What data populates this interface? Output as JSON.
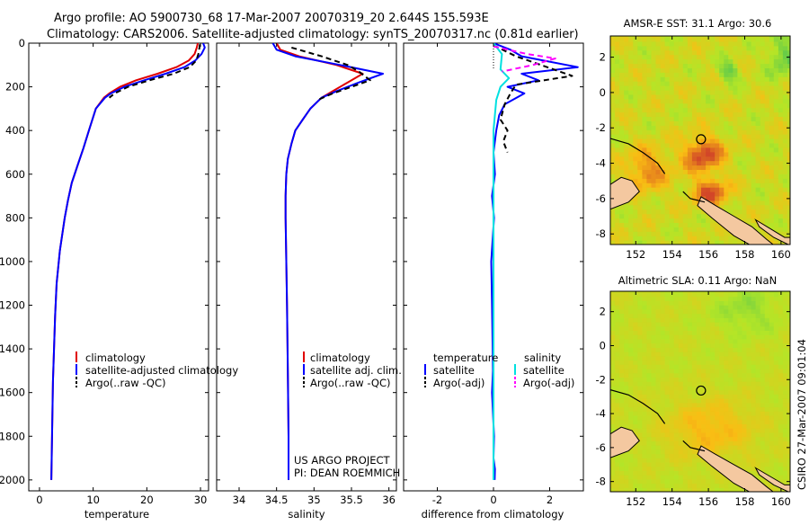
{
  "header": {
    "line1": "Argo profile: AO 5900730_68 17-Mar-2007 20070319_20 2.644S 155.593E",
    "line2": "Climatology: CARS2006. Satellite-adjusted climatology: synTS_20070317.nc (0.81d earlier)"
  },
  "side_label": "CSIRO 27-Mar-2007 09:01:04",
  "colors": {
    "climatology": "#e00000",
    "satellite": "#0000ff",
    "argo": "#000000",
    "satellite_salinity": "#00e0e0",
    "argo_salinity": "#ff00ff",
    "land": "#f4c8a0"
  },
  "chart_data": [
    {
      "type": "line",
      "id": "temperature",
      "xlabel": "temperature",
      "xlim": [
        -2,
        31.5
      ],
      "xticks": [
        0,
        10,
        20,
        30
      ],
      "ylim": [
        0,
        2050
      ],
      "yticks": [
        0,
        200,
        400,
        600,
        800,
        1000,
        1200,
        1400,
        1600,
        1800,
        2000
      ],
      "legend": [
        "climatology",
        "satellite-adjusted climatology",
        "Argo(..raw -QC)"
      ],
      "series": [
        {
          "name": "climatology",
          "style": "solid",
          "x": [
            29.5,
            29.3,
            28.9,
            27.8,
            25.5,
            22,
            18,
            15,
            13,
            12,
            10.5,
            9.2,
            8.2,
            7.1,
            6,
            5.3,
            4.7,
            3.8,
            3.2,
            2.9,
            2.7,
            2.5,
            2.4,
            2.3,
            2.2
          ],
          "y": [
            0,
            20,
            50,
            80,
            110,
            140,
            170,
            200,
            230,
            250,
            300,
            400,
            480,
            560,
            640,
            720,
            800,
            950,
            1100,
            1250,
            1400,
            1550,
            1700,
            1850,
            2000
          ]
        },
        {
          "name": "satellite-adjusted climatology",
          "style": "solid",
          "x": [
            30.5,
            30.8,
            30.2,
            29,
            27,
            23.5,
            19.5,
            15.8,
            13.3,
            12.2,
            10.5,
            9.2,
            8.2,
            7.1,
            6,
            5.3,
            4.7,
            3.8,
            3.2,
            2.9,
            2.7,
            2.5,
            2.4,
            2.3,
            2.2
          ],
          "y": [
            0,
            20,
            50,
            80,
            110,
            140,
            170,
            200,
            230,
            250,
            300,
            400,
            480,
            560,
            640,
            720,
            800,
            950,
            1100,
            1250,
            1400,
            1550,
            1700,
            1850,
            2000
          ]
        },
        {
          "name": "Argo(..raw -QC)",
          "style": "dashed",
          "x": [
            29.9,
            29.8,
            29.6,
            29.2,
            28,
            25,
            20.5,
            16.5,
            14,
            13
          ],
          "y": [
            5,
            20,
            50,
            80,
            110,
            140,
            170,
            200,
            230,
            250
          ]
        }
      ]
    },
    {
      "type": "line",
      "id": "salinity",
      "xlabel": "salinity",
      "xlim": [
        33.7,
        36.1
      ],
      "xticks": [
        34,
        34.5,
        35,
        35.5,
        36
      ],
      "ylim": [
        0,
        2050
      ],
      "legend": [
        "climatology",
        "satellite adj. clim.",
        "Argo(..raw -QC)"
      ],
      "annotation": [
        "US ARGO PROJECT",
        "PI: DEAN ROEMMICH"
      ],
      "series": [
        {
          "name": "climatology",
          "style": "solid",
          "x": [
            34.5,
            34.55,
            34.8,
            35.3,
            35.65,
            35.45,
            35.25,
            35.1,
            34.95,
            34.85,
            34.75,
            34.7,
            34.65,
            34.63,
            34.62,
            34.62,
            34.63,
            34.64,
            34.65,
            34.66,
            34.66
          ],
          "y": [
            0,
            30,
            60,
            100,
            140,
            180,
            220,
            250,
            300,
            350,
            400,
            460,
            530,
            600,
            700,
            800,
            1000,
            1200,
            1500,
            1800,
            2000
          ]
        },
        {
          "name": "satellite adj. clim.",
          "style": "solid",
          "x": [
            34.45,
            34.5,
            34.75,
            35.35,
            35.92,
            35.6,
            35.3,
            35.1,
            34.95,
            34.85,
            34.75,
            34.7,
            34.65,
            34.63,
            34.62,
            34.62,
            34.63,
            34.64,
            34.65,
            34.66,
            34.66
          ],
          "y": [
            0,
            30,
            60,
            100,
            140,
            180,
            220,
            250,
            300,
            350,
            400,
            460,
            530,
            600,
            700,
            800,
            1000,
            1200,
            1500,
            1800,
            2000
          ]
        },
        {
          "name": "Argo(..raw -QC)",
          "style": "dashed",
          "x": [
            34.7,
            35.1,
            35.45,
            35.6,
            35.75,
            35.5,
            35.25,
            35.05
          ],
          "y": [
            20,
            60,
            100,
            130,
            170,
            200,
            230,
            260
          ]
        }
      ]
    },
    {
      "type": "line",
      "id": "difference",
      "xlabel": "difference from climatology",
      "xlim": [
        -3.2,
        3.2
      ],
      "xticks": [
        -2,
        0,
        2
      ],
      "ylim": [
        0,
        2050
      ],
      "legend": {
        "temperature": [
          "satellite",
          "Argo(-adj)"
        ],
        "salinity": [
          "satellite",
          "Argo(-adj)"
        ]
      },
      "legend_headers": [
        "temperature",
        "salinity"
      ],
      "series": [
        {
          "name": "temperature satellite",
          "style": "solid",
          "x": [
            0,
            0.6,
            1,
            3,
            1,
            1.6,
            0.5,
            1.1,
            0.4,
            0.2,
            0.1,
            0,
            0.05,
            -0.05,
            0.02,
            -0.08,
            -0.05,
            -0.03,
            -0.02,
            -0.05,
            0.02,
            0,
            0.05,
            0.04
          ],
          "y": [
            0,
            30,
            60,
            110,
            140,
            170,
            200,
            230,
            280,
            330,
            400,
            500,
            600,
            700,
            800,
            1000,
            1200,
            1400,
            1500,
            1600,
            1800,
            1900,
            1950,
            2000
          ]
        },
        {
          "name": "temperature Argo(-adj)",
          "style": "dashed",
          "x": [
            0,
            0.8,
            2.8,
            0.8,
            0.6,
            0.4,
            0.25,
            0.5,
            0.35,
            0.5
          ],
          "y": [
            10,
            60,
            150,
            190,
            230,
            280,
            350,
            400,
            450,
            500
          ]
        },
        {
          "name": "salinity satellite",
          "style": "solid",
          "x": [
            0,
            0.3,
            0.25,
            0.55,
            0.25,
            0.1,
            0,
            0,
            0,
            0,
            0
          ],
          "y": [
            0,
            50,
            120,
            160,
            200,
            260,
            400,
            700,
            1200,
            1600,
            2000
          ]
        },
        {
          "name": "salinity Argo(-adj)",
          "style": "dashed",
          "x": [
            0,
            1.2,
            2.2,
            1.4,
            0.3
          ],
          "y": [
            15,
            50,
            70,
            100,
            130
          ]
        }
      ]
    },
    {
      "type": "heatmap",
      "id": "sst_map",
      "title": "AMSR-E SST: 31.1 Argo: 30.6",
      "xticks": [
        152,
        154,
        156,
        158,
        160
      ],
      "yticks": [
        2,
        0,
        -2,
        -4,
        -6,
        -8
      ],
      "xlim": [
        150.6,
        160.5
      ],
      "ylim": [
        -8.6,
        3.2
      ],
      "argo_position": [
        155.593,
        -2.644
      ]
    },
    {
      "type": "heatmap",
      "id": "sla_map",
      "title": "Altimetric SLA: 0.11 Argo: NaN",
      "xticks": [
        152,
        154,
        156,
        158,
        160
      ],
      "yticks": [
        2,
        0,
        -2,
        -4,
        -6,
        -8
      ],
      "xlim": [
        150.6,
        160.5
      ],
      "ylim": [
        -8.6,
        3.2
      ],
      "argo_position": [
        155.593,
        -2.644
      ]
    }
  ]
}
